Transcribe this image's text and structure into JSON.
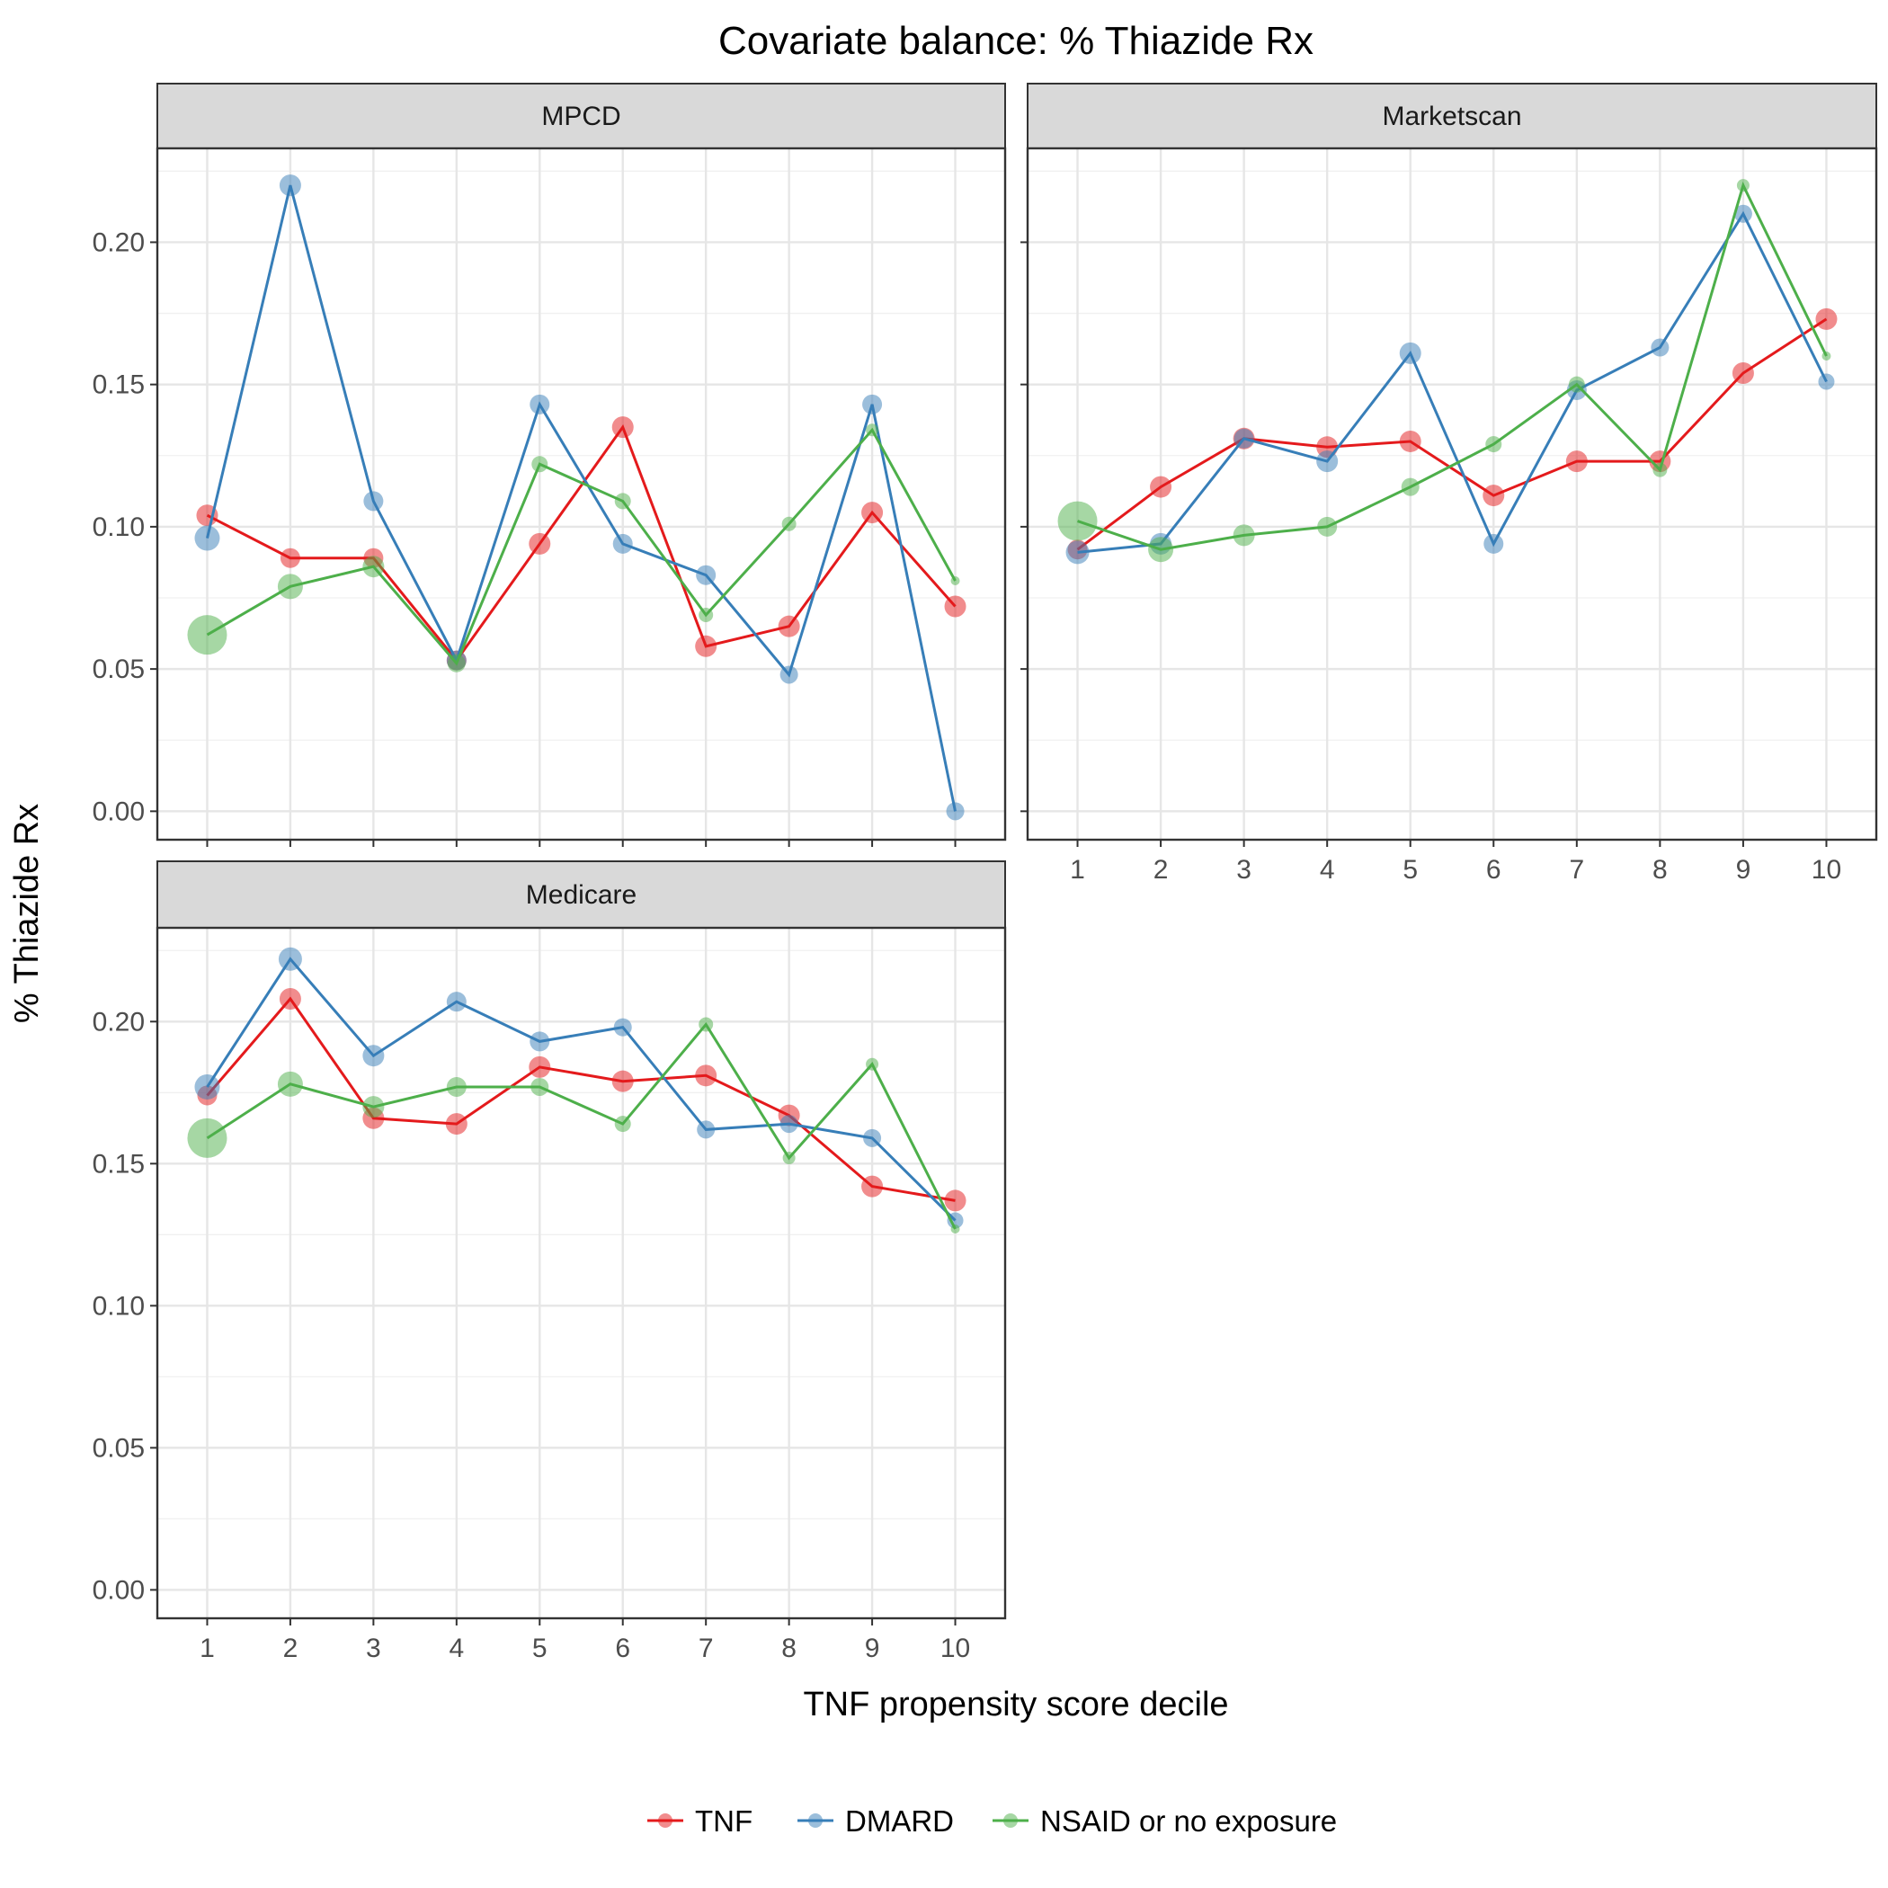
{
  "chart_data": {
    "type": "line",
    "title": "Covariate balance: % Thiazide Rx",
    "xlabel": "TNF propensity score decile",
    "ylabel": "% Thiazide Rx",
    "x": [
      1,
      2,
      3,
      4,
      5,
      6,
      7,
      8,
      9,
      10
    ],
    "ylim": [
      -0.01,
      0.233
    ],
    "yticks": [
      0.0,
      0.05,
      0.1,
      0.15,
      0.2
    ],
    "ytick_labels": [
      "0.00",
      "0.05",
      "0.10",
      "0.15",
      "0.20"
    ],
    "grid": true,
    "legend_position": "bottom",
    "colors": {
      "TNF": "#e41a1c",
      "DMARD": "#377eb8",
      "NSAID or no exposure": "#4daf4a"
    },
    "panels": [
      {
        "name": "MPCD",
        "series": [
          {
            "name": "TNF",
            "values": [
              0.104,
              0.089,
              0.089,
              0.053,
              0.094,
              0.135,
              0.058,
              0.065,
              0.105,
              0.072
            ],
            "sizes": [
              12,
              11,
              11,
              11,
              12,
              12,
              12,
              12,
              12,
              12
            ]
          },
          {
            "name": "DMARD",
            "values": [
              0.096,
              0.22,
              0.109,
              0.053,
              0.143,
              0.094,
              0.083,
              0.048,
              0.143,
              0.0
            ],
            "sizes": [
              14,
              12,
              11,
              11,
              11,
              11,
              11,
              10,
              11,
              10
            ]
          },
          {
            "name": "NSAID or no exposure",
            "values": [
              0.062,
              0.079,
              0.086,
              0.052,
              0.122,
              0.109,
              0.069,
              0.101,
              0.134,
              0.081
            ],
            "sizes": [
              22,
              14,
              12,
              10,
              9,
              9,
              8,
              8,
              7,
              5
            ]
          }
        ]
      },
      {
        "name": "Marketscan",
        "series": [
          {
            "name": "TNF",
            "values": [
              0.092,
              0.114,
              0.131,
              0.128,
              0.13,
              0.111,
              0.123,
              0.123,
              0.154,
              0.173
            ],
            "sizes": [
              11,
              12,
              12,
              12,
              12,
              12,
              12,
              12,
              12,
              12
            ]
          },
          {
            "name": "DMARD",
            "values": [
              0.091,
              0.094,
              0.131,
              0.123,
              0.161,
              0.094,
              0.148,
              0.163,
              0.21,
              0.151
            ],
            "sizes": [
              13,
              12,
              11,
              12,
              12,
              11,
              11,
              10,
              10,
              9
            ]
          },
          {
            "name": "NSAID or no exposure",
            "values": [
              0.102,
              0.092,
              0.097,
              0.1,
              0.114,
              0.129,
              0.15,
              0.12,
              0.22,
              0.16
            ],
            "sizes": [
              22,
              14,
              12,
              11,
              10,
              9,
              9,
              8,
              7,
              5
            ]
          }
        ]
      },
      {
        "name": "Medicare",
        "series": [
          {
            "name": "TNF",
            "values": [
              0.174,
              0.208,
              0.166,
              0.164,
              0.184,
              0.179,
              0.181,
              0.167,
              0.142,
              0.137
            ],
            "sizes": [
              11,
              12,
              12,
              12,
              12,
              12,
              12,
              12,
              12,
              12
            ]
          },
          {
            "name": "DMARD",
            "values": [
              0.177,
              0.222,
              0.188,
              0.207,
              0.193,
              0.198,
              0.162,
              0.164,
              0.159,
              0.13
            ],
            "sizes": [
              14,
              13,
              12,
              11,
              11,
              10,
              10,
              10,
              10,
              9
            ]
          },
          {
            "name": "NSAID or no exposure",
            "values": [
              0.159,
              0.178,
              0.17,
              0.177,
              0.177,
              0.164,
              0.199,
              0.152,
              0.185,
              0.127
            ],
            "sizes": [
              22,
              14,
              12,
              11,
              10,
              9,
              8,
              7,
              7,
              5
            ]
          }
        ]
      }
    ]
  }
}
